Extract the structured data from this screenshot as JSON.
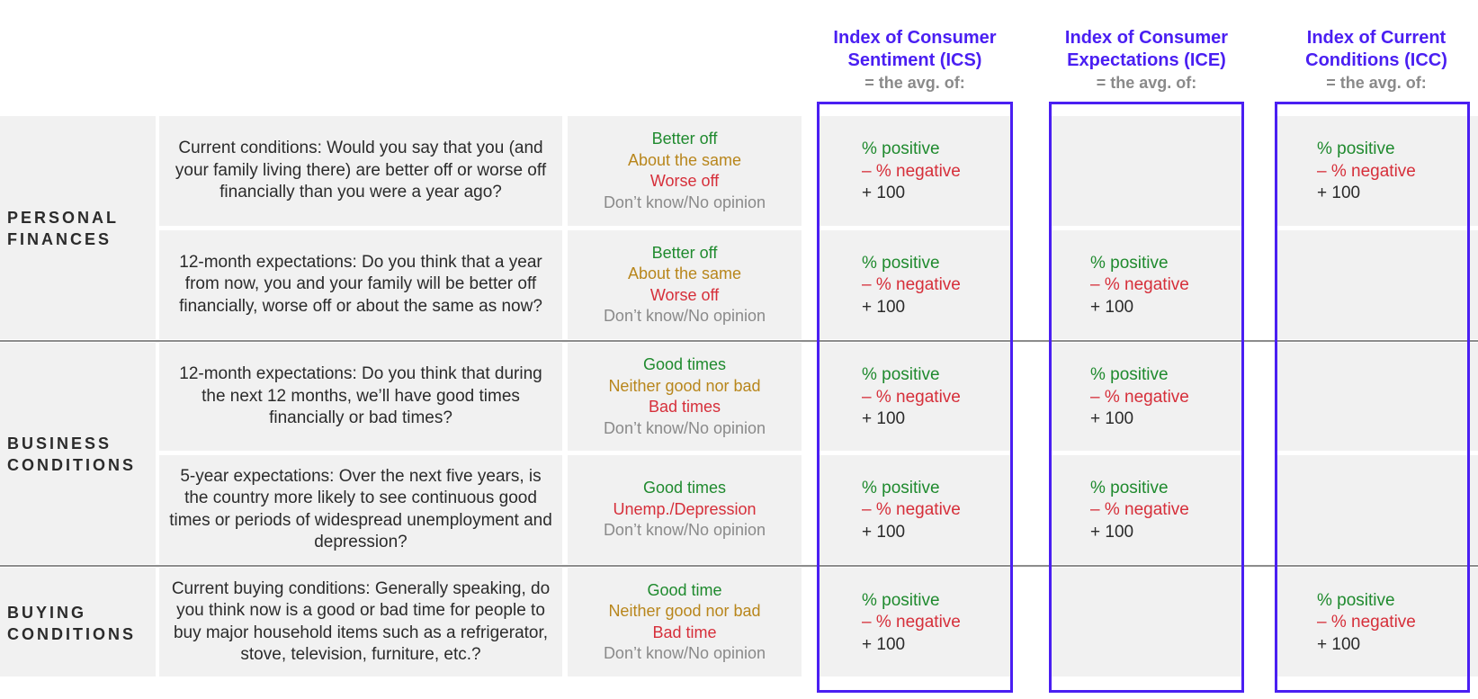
{
  "headers": [
    {
      "title_lines": [
        "Index of Consumer",
        "Sentiment (ICS)"
      ],
      "sub": "= the avg. of:"
    },
    {
      "title_lines": [
        "Index of Consumer",
        "Expectations (ICE)"
      ],
      "sub": "= the avg. of:"
    },
    {
      "title_lines": [
        "Index of Current",
        "Conditions (ICC)"
      ],
      "sub": "= the avg. of:"
    }
  ],
  "sections": [
    {
      "label_lines": [
        "PERSONAL",
        "FINANCES"
      ]
    },
    {
      "label_lines": [
        "BUSINESS",
        "CONDITIONS"
      ]
    },
    {
      "label_lines": [
        "BUYING",
        "CONDITIONS"
      ]
    }
  ],
  "formula": {
    "positive": "% positive",
    "negative": "– % negative",
    "plus": "+ 100"
  },
  "rows": [
    {
      "question": "Current conditions: Would you say that you (and your family living there) are better off or worse off financially than you were a year ago?",
      "answers": [
        {
          "text": "Better off",
          "tone": "pos"
        },
        {
          "text": "About the same",
          "tone": "mid"
        },
        {
          "text": "Worse off",
          "tone": "neg"
        },
        {
          "text": "Don’t know/No opinion",
          "tone": "dk"
        }
      ]
    },
    {
      "question": "12-month expectations: Do you think that a year from now, you and your family will be better off financially, worse off or about the same as now?",
      "answers": [
        {
          "text": "Better off",
          "tone": "pos"
        },
        {
          "text": "About the same",
          "tone": "mid"
        },
        {
          "text": "Worse off",
          "tone": "neg"
        },
        {
          "text": "Don’t know/No opinion",
          "tone": "dk"
        }
      ]
    },
    {
      "question": "12-month expectations: Do you think that during the next 12 months, we’ll have good times financially or bad times?",
      "answers": [
        {
          "text": "Good times",
          "tone": "pos"
        },
        {
          "text": "Neither good nor bad",
          "tone": "mid"
        },
        {
          "text": "Bad times",
          "tone": "neg"
        },
        {
          "text": "Don’t know/No opinion",
          "tone": "dk"
        }
      ]
    },
    {
      "question": "5-year expectations: Over the next five years, is the country more likely to see continuous good times or periods of widespread unemployment and depression?",
      "answers": [
        {
          "text": "Good times",
          "tone": "pos"
        },
        {
          "text": "Unemp./Depression",
          "tone": "neg"
        },
        {
          "text": "Don’t know/No opinion",
          "tone": "dk"
        }
      ]
    },
    {
      "question": "Current buying conditions: Generally speaking, do you think now is a good or bad time for people to buy major household items such as a refrigerator, stove, television, furniture, etc.?",
      "answers": [
        {
          "text": "Good time",
          "tone": "pos"
        },
        {
          "text": "Neither good nor bad",
          "tone": "mid"
        },
        {
          "text": "Bad time",
          "tone": "neg"
        },
        {
          "text": "Don’t know/No opinion",
          "tone": "dk"
        }
      ]
    }
  ],
  "membership": [
    [
      true,
      false,
      true
    ],
    [
      true,
      true,
      false
    ],
    [
      true,
      true,
      false
    ],
    [
      true,
      true,
      false
    ],
    [
      true,
      false,
      true
    ]
  ],
  "colors": {
    "accent": "#4a1ff2",
    "positive": "#1f8a2e",
    "neutral": "#b8861c",
    "negative": "#d62f3a",
    "muted": "#8a8a8a",
    "cell_bg": "#f1f1f1"
  }
}
